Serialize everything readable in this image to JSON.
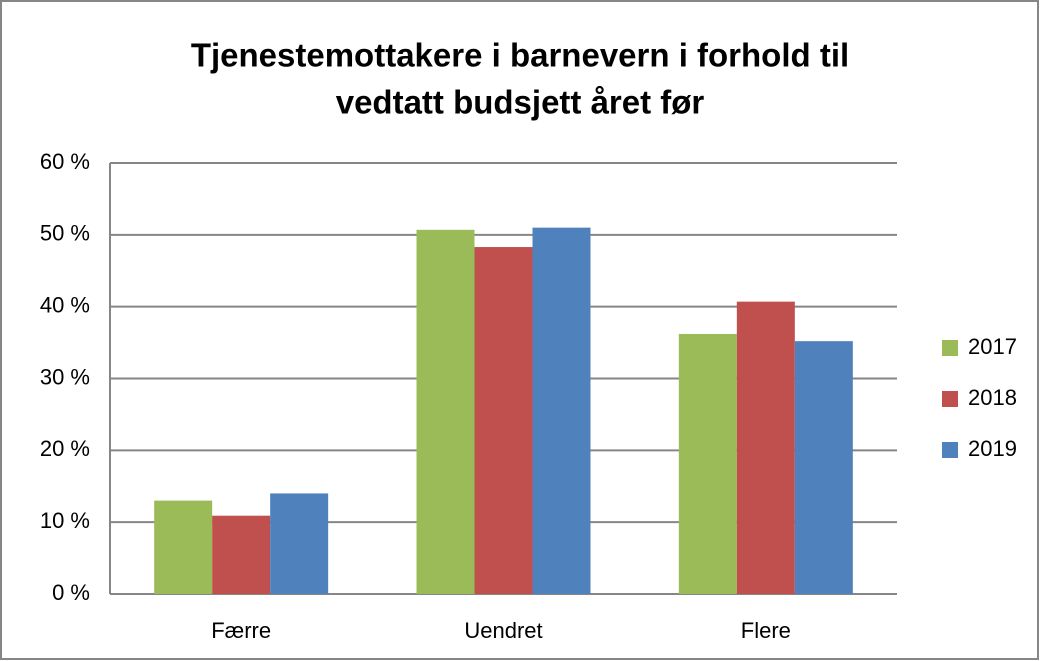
{
  "chart_data": {
    "type": "bar",
    "title": [
      "Tjenestemottakere i barnevern i forhold til",
      "vedtatt budsjett året før"
    ],
    "categories": [
      "Færre",
      "Uendret",
      "Flere"
    ],
    "series": [
      {
        "name": "2017",
        "color": "#9bbb59",
        "values": [
          13,
          50.7,
          36.2
        ]
      },
      {
        "name": "2018",
        "color": "#c0504d",
        "values": [
          10.9,
          48.3,
          40.7
        ]
      },
      {
        "name": "2019",
        "color": "#4f81bd",
        "values": [
          14,
          51,
          35.2
        ]
      }
    ],
    "ylim": [
      0,
      60
    ],
    "yticks": [
      {
        "value": 0,
        "label": "0 %"
      },
      {
        "value": 10,
        "label": "10 %"
      },
      {
        "value": 20,
        "label": "20 %"
      },
      {
        "value": 30,
        "label": "30 %"
      },
      {
        "value": 40,
        "label": "40 %"
      },
      {
        "value": 50,
        "label": "50 %"
      },
      {
        "value": 60,
        "label": "60 %"
      }
    ],
    "grid": true,
    "legend": "right"
  }
}
